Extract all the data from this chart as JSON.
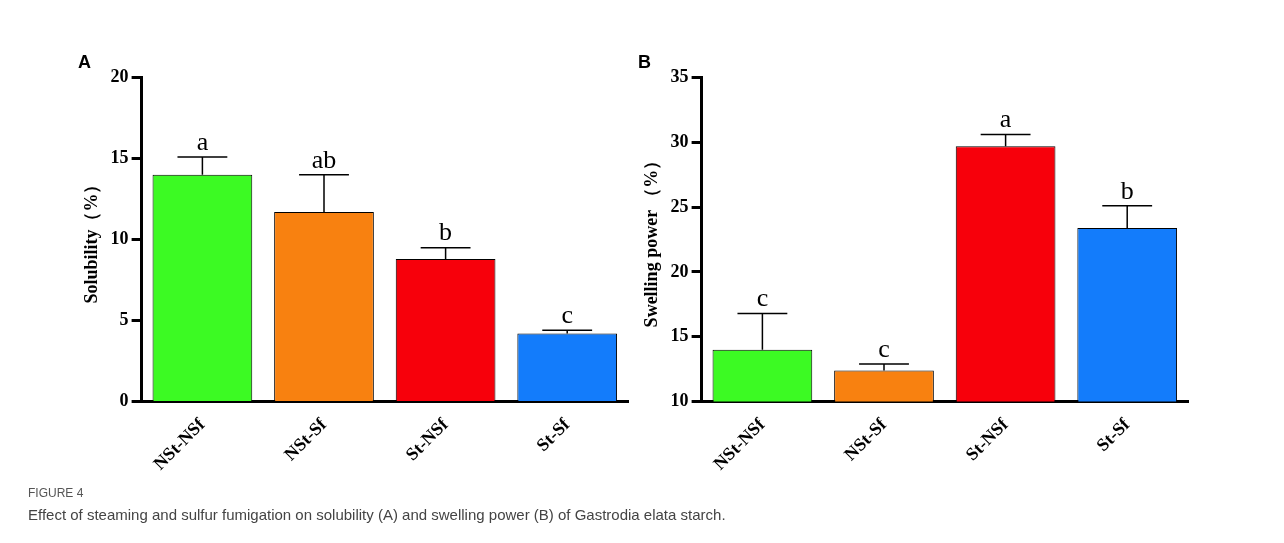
{
  "chart_data": [
    {
      "type": "bar",
      "title": "A",
      "ylabel": "Solubility（%）",
      "categories": [
        "NSt-NSf",
        "NSt-Sf",
        "St-NSf",
        "St-Sf"
      ],
      "values": [
        14.0,
        11.7,
        8.8,
        4.2
      ],
      "errors": [
        [
          14.0,
          15.1
        ],
        [
          11.7,
          14.0
        ],
        [
          8.8,
          9.5
        ],
        [
          4.2,
          4.4
        ]
      ],
      "colors": [
        "#3cfa23",
        "#f88110",
        "#f7000b",
        "#137cfb"
      ],
      "ylim": [
        0,
        20
      ],
      "yticks": [
        0,
        5,
        10,
        15,
        20
      ],
      "grid": false,
      "legend": false,
      "annotations": [
        "a",
        "ab",
        "b",
        "c",
        "FIGURE 4",
        "Effect of steaming and sulfur fumigation on solubility (A) and swelling power (B) of Gastrodia elata starch."
      ]
    },
    {
      "type": "bar",
      "title": "B",
      "ylabel": "Swelling power （%）",
      "categories": [
        "NSt-NSf",
        "NSt-Sf",
        "St-NSf",
        "St-Sf"
      ],
      "values": [
        14.0,
        12.4,
        29.7,
        23.4
      ],
      "errors": [
        [
          14.0,
          16.8
        ],
        [
          12.4,
          12.9
        ],
        [
          29.7,
          30.6
        ],
        [
          23.4,
          25.1
        ]
      ],
      "colors": [
        "#3cfa23",
        "#f88110",
        "#f7000b",
        "#137cfb"
      ],
      "ylim": [
        10,
        35
      ],
      "yticks": [
        10,
        15,
        20,
        25,
        30,
        35
      ],
      "grid": false,
      "legend": false,
      "annotations": [
        "c",
        "c",
        "a",
        "b"
      ]
    }
  ]
}
